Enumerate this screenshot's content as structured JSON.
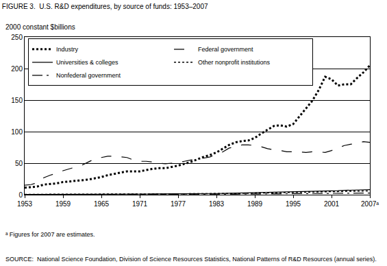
{
  "chart_data": {
    "type": "line",
    "title": "FIGURE 3.  U.S. R&D expenditures, by source of funds: 1953–2007",
    "y_label": "2000 constant $billions",
    "notes": [
      "ᵃ Figures for 2007 are estimates.",
      "SOURCE:  National Science Foundation, Division of Science Resources Statistics, National Patterns of R&D Resources (annual series)."
    ],
    "x": [
      1953,
      1954,
      1955,
      1956,
      1957,
      1958,
      1959,
      1960,
      1961,
      1962,
      1963,
      1964,
      1965,
      1966,
      1967,
      1968,
      1969,
      1970,
      1971,
      1972,
      1973,
      1974,
      1975,
      1976,
      1977,
      1978,
      1979,
      1980,
      1981,
      1982,
      1983,
      1984,
      1985,
      1986,
      1987,
      1988,
      1989,
      1990,
      1991,
      1992,
      1993,
      1994,
      1995,
      1996,
      1997,
      1998,
      1999,
      2000,
      2001,
      2002,
      2003,
      2004,
      2005,
      2006,
      2007
    ],
    "series": [
      {
        "name": "Industry",
        "color": "#000000",
        "line_style": "dot",
        "values": [
          11,
          12,
          13,
          16,
          17,
          18,
          20,
          21,
          22,
          23,
          24,
          26,
          28,
          31,
          33,
          35,
          37,
          37,
          37,
          39,
          41,
          42,
          42,
          44,
          46,
          49,
          52,
          56,
          60,
          63,
          67,
          73,
          79,
          83,
          85,
          86,
          90,
          97,
          103,
          109,
          110,
          108,
          112,
          124,
          137,
          149,
          166,
          187,
          183,
          173,
          175,
          175,
          185,
          194,
          205
        ]
      },
      {
        "name": "Federal government",
        "color": "#000000",
        "line_style": "dash",
        "values": [
          15,
          16,
          19,
          27,
          31,
          34,
          38,
          41,
          44,
          47,
          52,
          57,
          59,
          61,
          61,
          60,
          59,
          55,
          53,
          53,
          52,
          50,
          49,
          50,
          51,
          53,
          55,
          56,
          58,
          60,
          64,
          68,
          74,
          76,
          79,
          79,
          78,
          76,
          73,
          71,
          70,
          68,
          68,
          68,
          67,
          68,
          68,
          67,
          70,
          74,
          78,
          80,
          82,
          84,
          83
        ]
      },
      {
        "name": "Universities & colleges",
        "color": "#000000",
        "line_style": "solid",
        "values": [
          0.3,
          0.3,
          0.3,
          0.3,
          0.4,
          0.4,
          0.4,
          0.5,
          0.5,
          0.6,
          0.6,
          0.7,
          0.7,
          0.8,
          0.9,
          0.9,
          1.0,
          1.0,
          1.1,
          1.1,
          1.2,
          1.2,
          1.3,
          1.3,
          1.4,
          1.4,
          1.5,
          1.5,
          1.6,
          1.7,
          1.9,
          2.1,
          2.3,
          2.6,
          2.9,
          3.1,
          3.3,
          3.6,
          3.9,
          4.1,
          4.2,
          4.3,
          4.4,
          4.6,
          4.8,
          5.0,
          5.3,
          5.6,
          6.0,
          6.4,
          6.9,
          7.3,
          7.6,
          7.8,
          8.1
        ]
      },
      {
        "name": "Other nonprofit institutions",
        "color": "#000000",
        "line_style": "dot",
        "values": [
          0.5,
          0.5,
          0.6,
          0.6,
          0.7,
          0.7,
          0.8,
          0.8,
          0.9,
          0.9,
          1.0,
          1.0,
          1.1,
          1.1,
          1.2,
          1.2,
          1.2,
          1.2,
          1.2,
          1.2,
          1.2,
          1.2,
          1.2,
          1.3,
          1.3,
          1.4,
          1.4,
          1.4,
          1.5,
          1.6,
          1.7,
          1.8,
          1.9,
          2.0,
          2.1,
          2.3,
          2.5,
          2.7,
          2.9,
          3.0,
          3.1,
          3.2,
          3.3,
          3.5,
          3.7,
          3.9,
          4.1,
          4.4,
          4.7,
          5.0,
          5.2,
          5.5,
          5.7,
          5.9,
          6.1
        ]
      },
      {
        "name": "Nonfederal government",
        "color": "#000000",
        "line_style": "dashdot",
        "values": [
          0.2,
          0.2,
          0.2,
          0.2,
          0.2,
          0.2,
          0.2,
          0.2,
          0.2,
          0.2,
          0.3,
          0.3,
          0.3,
          0.3,
          0.3,
          0.3,
          0.3,
          0.3,
          0.3,
          0.3,
          0.4,
          0.4,
          0.4,
          0.5,
          0.5,
          0.5,
          0.6,
          0.6,
          0.6,
          0.6,
          0.7,
          0.8,
          0.9,
          1.0,
          1.1,
          1.2,
          1.3,
          1.4,
          1.5,
          1.5,
          1.6,
          1.7,
          1.8,
          1.9,
          2.0,
          2.1,
          2.2,
          2.3,
          2.4,
          2.5,
          2.5,
          2.5,
          2.5,
          2.6,
          2.6
        ]
      }
    ],
    "xlim": [
      1953,
      2007
    ],
    "xticks": [
      1953,
      1959,
      1965,
      1971,
      1977,
      1983,
      1989,
      1995,
      2001,
      {
        "value": 2007,
        "label": "2007ᵃ"
      }
    ],
    "ylim": [
      0,
      250
    ],
    "yticks": [
      0,
      50,
      100,
      150,
      200,
      250
    ],
    "grid": true,
    "legend": "top-left"
  }
}
